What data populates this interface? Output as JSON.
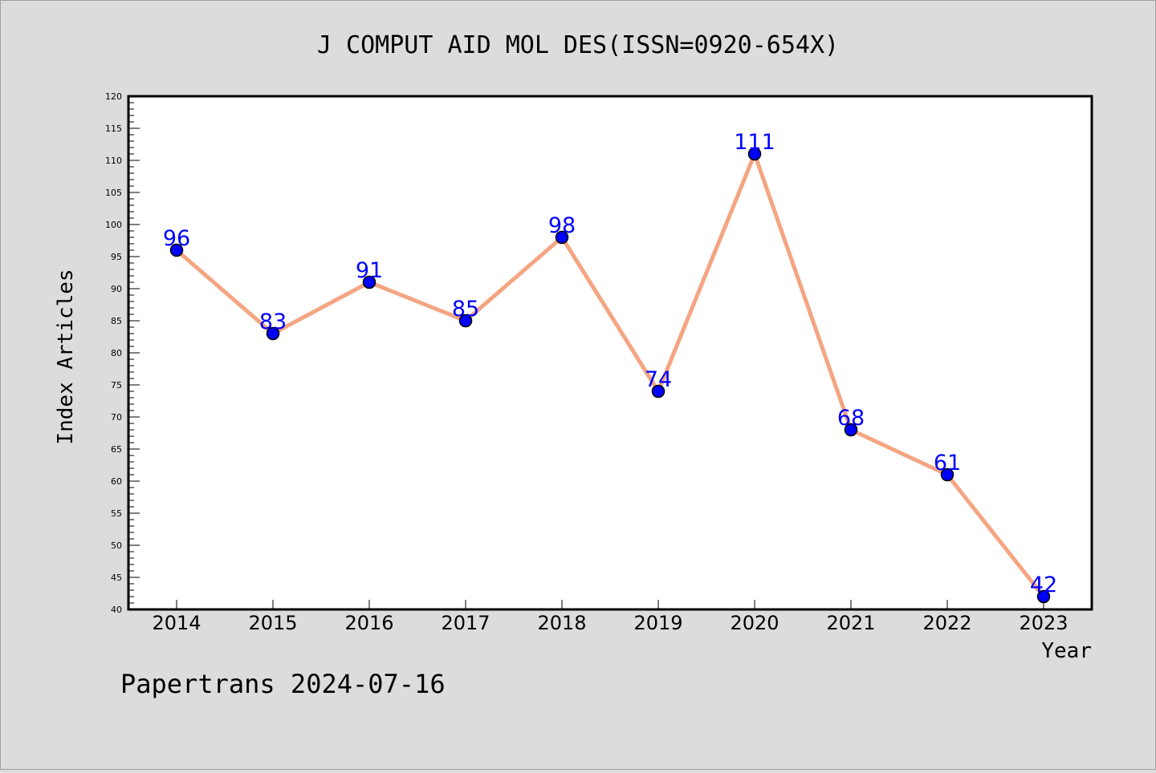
{
  "chart_data": {
    "type": "line",
    "title": "J COMPUT AID MOL DES(ISSN=0920-654X)",
    "xlabel": "Year",
    "ylabel": "Index Articles",
    "categories": [
      "2014",
      "2015",
      "2016",
      "2017",
      "2018",
      "2019",
      "2020",
      "2021",
      "2022",
      "2023"
    ],
    "values": [
      96,
      83,
      91,
      85,
      98,
      74,
      111,
      68,
      61,
      42
    ],
    "data_labels": [
      "96",
      "83",
      "91",
      "85",
      "98",
      "74",
      "111",
      "68",
      "61",
      "42"
    ],
    "y_ticks": [
      "40",
      "45",
      "50",
      "55",
      "60",
      "65",
      "70",
      "75",
      "80",
      "85",
      "90",
      "95",
      "100",
      "105",
      "110",
      "115",
      "120"
    ],
    "ylim": [
      40,
      120
    ],
    "line_color": "#f4a582",
    "marker_color": "#0000ff",
    "label_color": "#0000ff",
    "grid": false,
    "legend": "none"
  },
  "footer": {
    "watermark": "Papertrans 2024-07-16"
  }
}
